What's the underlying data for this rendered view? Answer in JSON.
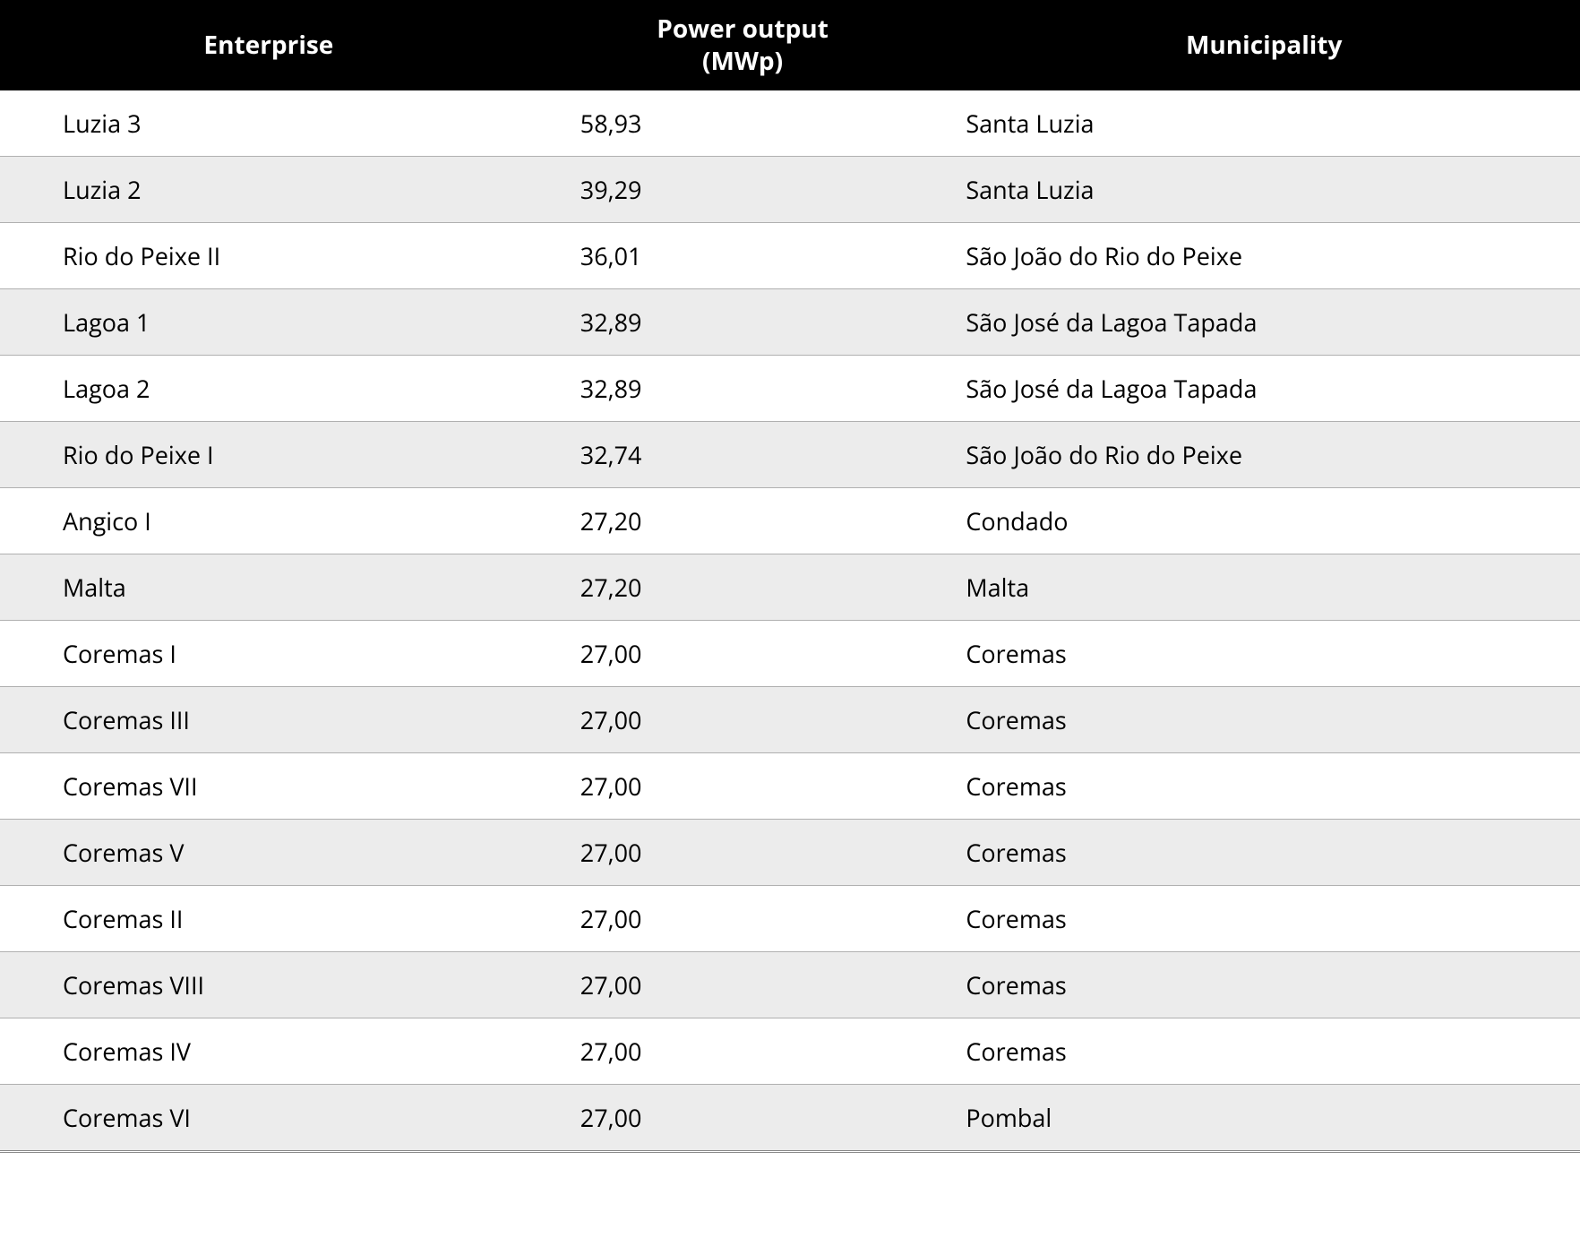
{
  "table": {
    "columns": [
      {
        "label": "Enterprise"
      },
      {
        "label": "Power output (MWp)"
      },
      {
        "label": "Municipality"
      }
    ],
    "rows": [
      {
        "enterprise": "Luzia 3",
        "power": "58,93",
        "municipality": "Santa Luzia"
      },
      {
        "enterprise": "Luzia 2",
        "power": "39,29",
        "municipality": "Santa Luzia"
      },
      {
        "enterprise": "Rio do Peixe II",
        "power": "36,01",
        "municipality": "São João do Rio do Peixe"
      },
      {
        "enterprise": "Lagoa 1",
        "power": "32,89",
        "municipality": "São José da Lagoa Tapada"
      },
      {
        "enterprise": "Lagoa 2",
        "power": "32,89",
        "municipality": "São José da Lagoa Tapada"
      },
      {
        "enterprise": "Rio do Peixe I",
        "power": "32,74",
        "municipality": "São João do Rio do Peixe"
      },
      {
        "enterprise": "Angico I",
        "power": "27,20",
        "municipality": "Condado"
      },
      {
        "enterprise": "Malta",
        "power": "27,20",
        "municipality": "Malta"
      },
      {
        "enterprise": "Coremas I",
        "power": "27,00",
        "municipality": "Coremas"
      },
      {
        "enterprise": "Coremas III",
        "power": "27,00",
        "municipality": "Coremas"
      },
      {
        "enterprise": "Coremas VII",
        "power": "27,00",
        "municipality": "Coremas"
      },
      {
        "enterprise": "Coremas V",
        "power": "27,00",
        "municipality": "Coremas"
      },
      {
        "enterprise": "Coremas II",
        "power": "27,00",
        "municipality": "Coremas"
      },
      {
        "enterprise": "Coremas VIII",
        "power": "27,00",
        "municipality": "Coremas"
      },
      {
        "enterprise": "Coremas IV",
        "power": "27,00",
        "municipality": "Coremas"
      },
      {
        "enterprise": "Coremas VI",
        "power": "27,00",
        "municipality": "Pombal"
      }
    ],
    "styling": {
      "header_bg": "#000000",
      "header_fg": "#ffffff",
      "header_fontsize": 28,
      "header_fontweight": 700,
      "cell_fontsize": 27,
      "cell_fg": "#000000",
      "row_odd_bg": "#ffffff",
      "row_even_bg": "#ececec",
      "border_color": "#b0b0b0",
      "col_widths_pct": [
        34,
        26,
        40
      ]
    }
  }
}
